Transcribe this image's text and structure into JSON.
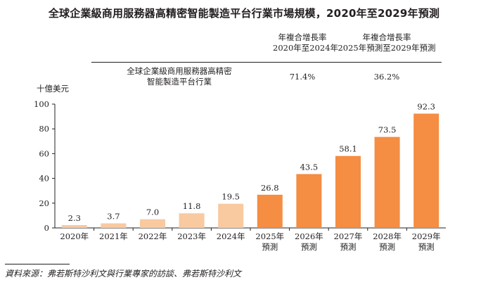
{
  "title": "全球企業級商用服務器高精密智能製造平台行業市場規模，2020年至2029年預測",
  "cagr_table": {
    "headers": [
      {
        "line1": "年複合增長率",
        "line2": "2020年至2024年"
      },
      {
        "line1": "年複合增長率",
        "line2": "2025年預測至2029年預測"
      }
    ],
    "row_label_line1": "全球企業級商用服務器高精密",
    "row_label_line2": "智能製造平台行業",
    "values": [
      "71.4%",
      "36.2%"
    ]
  },
  "source": "資料來源：弗若斯特沙利文與行業專家的訪談、弗若斯特沙利文",
  "colors": {
    "historical": "#f9c9a0",
    "forecast": "#f58d42",
    "axis": "#231f20"
  },
  "chart_data": {
    "type": "bar",
    "ylabel": "十億美元",
    "ylim": [
      0,
      100
    ],
    "yticks": [
      "0",
      "20",
      "40",
      "60",
      "80",
      "100"
    ],
    "categories": [
      {
        "line1": "2020年",
        "line2": ""
      },
      {
        "line1": "2021年",
        "line2": ""
      },
      {
        "line1": "2022年",
        "line2": ""
      },
      {
        "line1": "2023年",
        "line2": ""
      },
      {
        "line1": "2024年",
        "line2": ""
      },
      {
        "line1": "2025年",
        "line2": "預測"
      },
      {
        "line1": "2026年",
        "line2": "預測"
      },
      {
        "line1": "2027年",
        "line2": "預測"
      },
      {
        "line1": "2028年",
        "line2": "預測"
      },
      {
        "line1": "2029年",
        "line2": "預測"
      }
    ],
    "values": [
      2.3,
      3.7,
      7.0,
      11.8,
      19.5,
      26.8,
      43.5,
      58.1,
      73.5,
      92.3
    ],
    "value_labels": [
      "2.3",
      "3.7",
      "7.0",
      "11.8",
      "19.5",
      "26.8",
      "43.5",
      "58.1",
      "73.5",
      "92.3"
    ],
    "forecast": [
      false,
      false,
      false,
      false,
      false,
      true,
      true,
      true,
      true,
      true
    ],
    "grid": false
  }
}
